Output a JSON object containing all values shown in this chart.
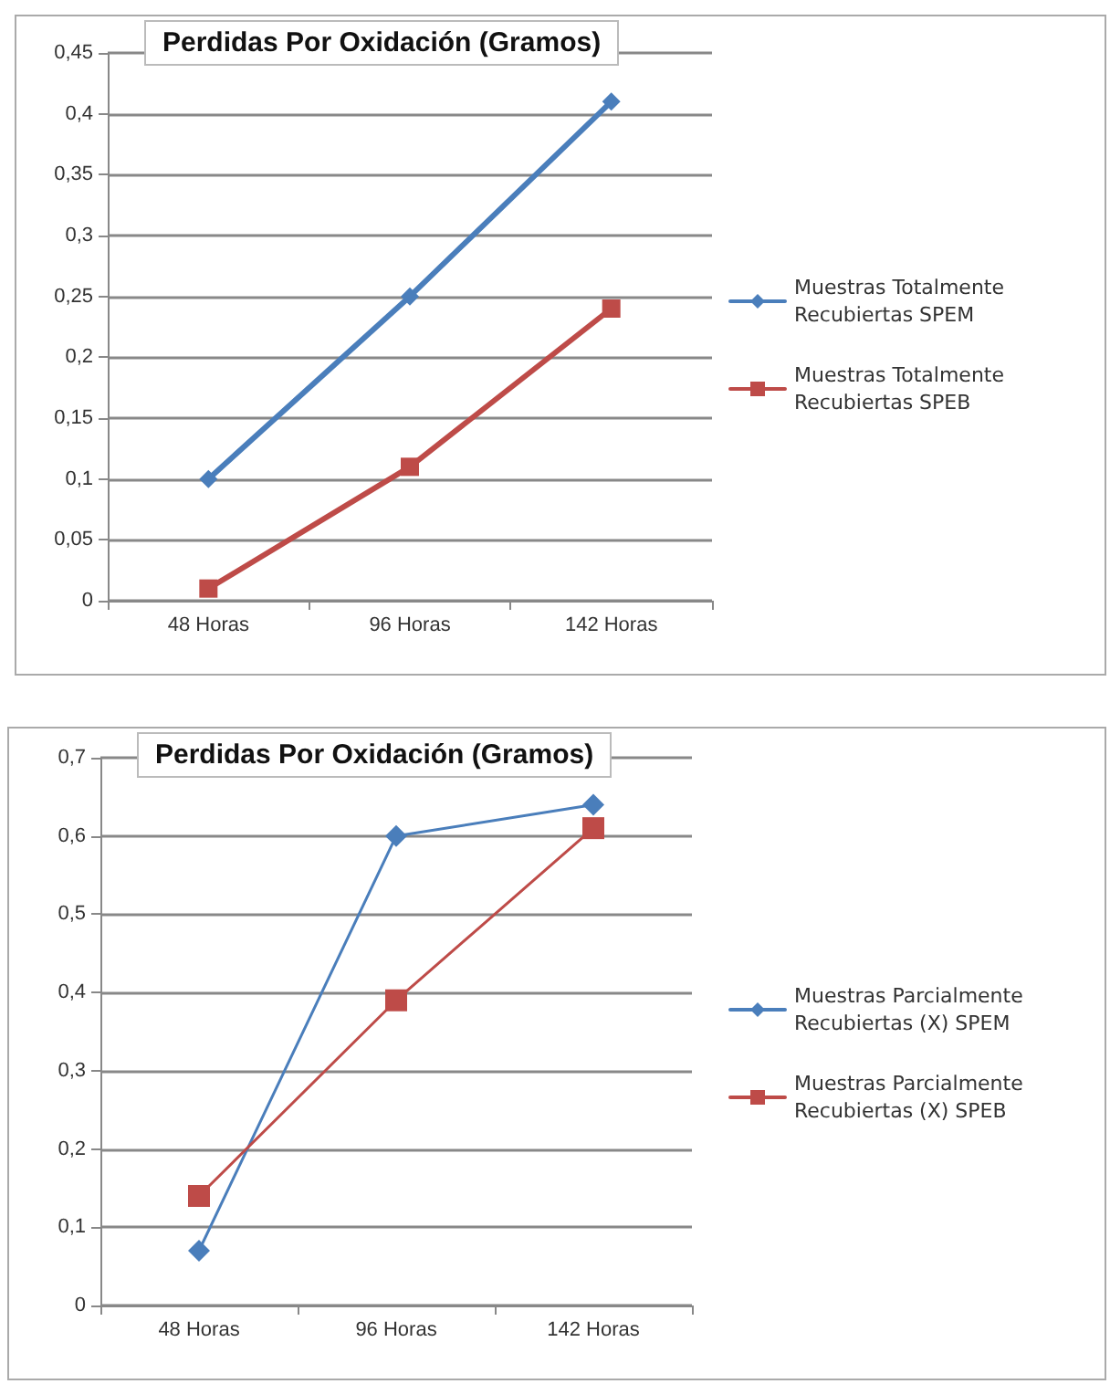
{
  "chart_data": [
    {
      "type": "line",
      "title": "Perdidas Por Oxidación (Gramos)",
      "categories": [
        "48 Horas",
        "96 Horas",
        "142 Horas"
      ],
      "series": [
        {
          "name": "Muestras Totalmente Recubiertas SPEM",
          "color": "#4a7ebb",
          "marker": "diamond",
          "values": [
            0.1,
            0.25,
            0.41
          ]
        },
        {
          "name": "Muestras Totalmente Recubiertas SPEB",
          "color": "#be4b48",
          "marker": "square",
          "values": [
            0.01,
            0.11,
            0.24
          ]
        }
      ],
      "ylim": [
        0,
        0.45
      ],
      "yticks": [
        0,
        {
          "value": 0.05,
          "label": "0,05"
        },
        {
          "value": 0.1,
          "label": "0,1"
        },
        {
          "value": 0.15,
          "label": "0,15"
        },
        {
          "value": 0.2,
          "label": "0,2"
        },
        {
          "value": 0.25,
          "label": "0,25"
        },
        {
          "value": 0.3,
          "label": "0,3"
        },
        {
          "value": 0.35,
          "label": "0,35"
        },
        {
          "value": 0.4,
          "label": "0,4"
        },
        {
          "value": 0.45,
          "label": "0,45"
        }
      ],
      "grid": "y",
      "legend": "right",
      "line_style": "solid"
    },
    {
      "type": "line",
      "title": "Perdidas Por Oxidación (Gramos)",
      "categories": [
        "48 Horas",
        "96 Horas",
        "142 Horas"
      ],
      "series": [
        {
          "name": "Muestras Parcialmente Recubiertas (X) SPEM",
          "color": "#4a7ebb",
          "marker": "diamond",
          "values": [
            0.07,
            0.6,
            0.64
          ]
        },
        {
          "name": "Muestras Parcialmente Recubiertas (X) SPEB",
          "color": "#be4b48",
          "marker": "square",
          "values": [
            0.14,
            0.39,
            0.61
          ]
        }
      ],
      "ylim": [
        0,
        0.7
      ],
      "yticks": [
        0,
        {
          "value": 0.1,
          "label": "0,1"
        },
        {
          "value": 0.2,
          "label": "0,2"
        },
        {
          "value": 0.3,
          "label": "0,3"
        },
        {
          "value": 0.4,
          "label": "0,4"
        },
        {
          "value": 0.5,
          "label": "0,5"
        },
        {
          "value": 0.6,
          "label": "0,6"
        },
        {
          "value": 0.7,
          "label": "0,7"
        }
      ],
      "grid": "y",
      "legend": "right",
      "line_style": "solid"
    }
  ]
}
